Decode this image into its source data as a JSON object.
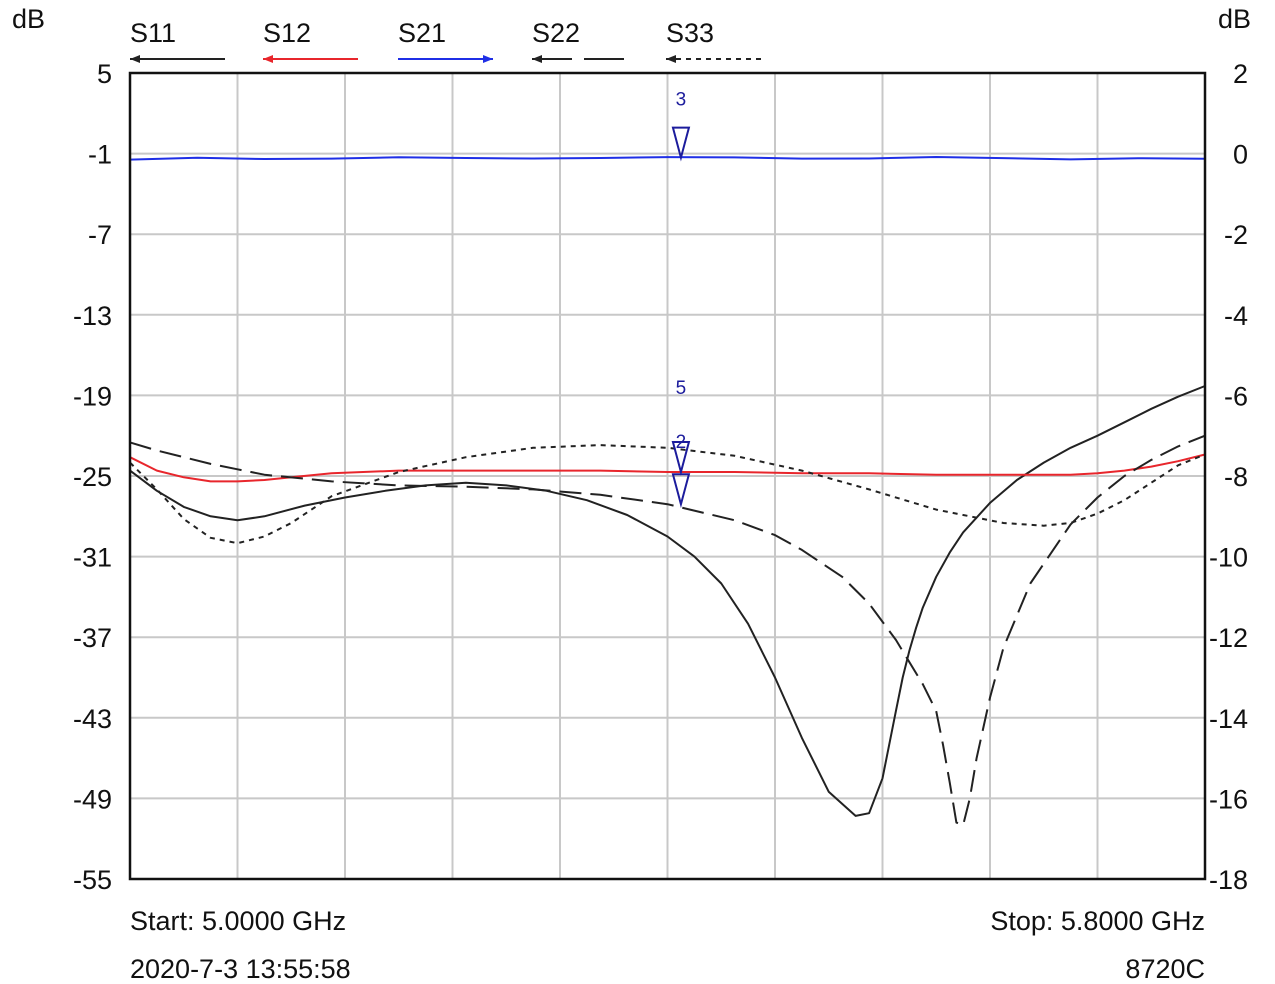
{
  "chart_data": {
    "type": "line",
    "x_range_ghz": [
      5.0,
      5.8
    ],
    "left_axis": {
      "label": "dB",
      "ylim": [
        -55,
        5
      ],
      "ticks": [
        "5",
        "-1",
        "-7",
        "-13",
        "-19",
        "-25",
        "-31",
        "-37",
        "-43",
        "-49",
        "-55"
      ]
    },
    "right_axis": {
      "label": "dB",
      "ylim": [
        -18,
        2
      ],
      "ticks": [
        "2",
        "0",
        "-2",
        "-4",
        "-6",
        "-8",
        "-10",
        "-12",
        "-14",
        "-16",
        "-18"
      ]
    },
    "grid": true,
    "legend_placement": "top",
    "series": [
      {
        "name": "S11",
        "axis": "left",
        "color": "#222222",
        "style": "solid",
        "x": [
          5.0,
          5.02,
          5.04,
          5.06,
          5.08,
          5.1,
          5.13,
          5.16,
          5.19,
          5.22,
          5.25,
          5.28,
          5.31,
          5.34,
          5.37,
          5.4,
          5.42,
          5.44,
          5.46,
          5.48,
          5.5,
          5.52,
          5.54,
          5.55,
          5.56,
          5.565,
          5.57,
          5.575,
          5.58,
          5.585,
          5.59,
          5.6,
          5.61,
          5.62,
          5.64,
          5.66,
          5.68,
          5.7,
          5.72,
          5.74,
          5.76,
          5.78,
          5.8
        ],
        "y": [
          -24.6,
          -26.1,
          -27.3,
          -28.0,
          -28.3,
          -28.0,
          -27.2,
          -26.6,
          -26.1,
          -25.7,
          -25.5,
          -25.7,
          -26.1,
          -26.8,
          -27.9,
          -29.5,
          -31.0,
          -33.0,
          -36.0,
          -40.0,
          -44.5,
          -48.5,
          -50.3,
          -50.1,
          -47.5,
          -45.0,
          -42.5,
          -40.0,
          -38.0,
          -36.3,
          -34.8,
          -32.5,
          -30.7,
          -29.2,
          -27.0,
          -25.3,
          -24.0,
          -22.9,
          -22.0,
          -21.0,
          -20.0,
          -19.1,
          -18.3
        ]
      },
      {
        "name": "S12",
        "axis": "left",
        "color": "#e8262c",
        "style": "solid",
        "x": [
          5.0,
          5.02,
          5.04,
          5.06,
          5.08,
          5.1,
          5.12,
          5.15,
          5.2,
          5.25,
          5.3,
          5.35,
          5.4,
          5.45,
          5.5,
          5.55,
          5.6,
          5.65,
          5.7,
          5.72,
          5.74,
          5.76,
          5.78,
          5.8
        ],
        "y": [
          -23.6,
          -24.6,
          -25.1,
          -25.4,
          -25.4,
          -25.3,
          -25.1,
          -24.8,
          -24.6,
          -24.6,
          -24.6,
          -24.6,
          -24.7,
          -24.7,
          -24.8,
          -24.8,
          -24.9,
          -24.9,
          -24.9,
          -24.8,
          -24.6,
          -24.3,
          -23.9,
          -23.4
        ]
      },
      {
        "name": "S21",
        "axis": "right",
        "color": "#1f2fe6",
        "style": "solid",
        "x": [
          5.0,
          5.05,
          5.1,
          5.15,
          5.2,
          5.25,
          5.3,
          5.35,
          5.4,
          5.45,
          5.5,
          5.55,
          5.6,
          5.65,
          5.7,
          5.75,
          5.8
        ],
        "y": [
          -0.15,
          -0.12,
          -0.13,
          -0.11,
          -0.1,
          -0.12,
          -0.11,
          -0.1,
          -0.1,
          -0.1,
          -0.11,
          -0.12,
          -0.1,
          -0.11,
          -0.13,
          -0.12,
          -0.14
        ]
      },
      {
        "name": "S22",
        "axis": "left",
        "color": "#222222",
        "style": "dashed",
        "x": [
          5.0,
          5.02,
          5.04,
          5.06,
          5.08,
          5.1,
          5.15,
          5.2,
          5.25,
          5.3,
          5.35,
          5.4,
          5.45,
          5.48,
          5.5,
          5.53,
          5.55,
          5.57,
          5.59,
          5.6,
          5.605,
          5.61,
          5.615,
          5.62,
          5.625,
          5.63,
          5.64,
          5.65,
          5.67,
          5.7,
          5.72,
          5.74,
          5.76,
          5.78,
          5.8
        ],
        "y": [
          -22.5,
          -23.1,
          -23.6,
          -24.1,
          -24.5,
          -24.9,
          -25.4,
          -25.7,
          -25.8,
          -26.0,
          -26.4,
          -27.1,
          -28.3,
          -29.4,
          -30.5,
          -32.5,
          -34.5,
          -37.2,
          -40.5,
          -42.5,
          -45.0,
          -47.8,
          -50.8,
          -51.0,
          -49.0,
          -46.0,
          -41.5,
          -37.8,
          -33.0,
          -28.6,
          -26.6,
          -25.0,
          -23.8,
          -22.8,
          -22.0
        ]
      },
      {
        "name": "S33",
        "axis": "left",
        "color": "#222222",
        "style": "dotted",
        "x": [
          5.0,
          5.02,
          5.04,
          5.06,
          5.08,
          5.1,
          5.12,
          5.15,
          5.2,
          5.25,
          5.3,
          5.35,
          5.4,
          5.45,
          5.5,
          5.55,
          5.6,
          5.65,
          5.68,
          5.7,
          5.72,
          5.74,
          5.76,
          5.78,
          5.8
        ],
        "y": [
          -24.0,
          -26.0,
          -28.2,
          -29.6,
          -30.0,
          -29.5,
          -28.5,
          -26.5,
          -24.7,
          -23.6,
          -22.9,
          -22.7,
          -22.9,
          -23.5,
          -24.6,
          -26.0,
          -27.5,
          -28.5,
          -28.7,
          -28.5,
          -27.8,
          -26.8,
          -25.5,
          -24.2,
          -23.4
        ]
      }
    ],
    "markers": [
      {
        "label": "3",
        "x": 5.41,
        "series": "S21"
      },
      {
        "label": "5",
        "x": 5.41,
        "series": "S12"
      },
      {
        "label": "2",
        "x": 5.41,
        "series": "S22"
      }
    ],
    "footer": {
      "start": "Start: 5.0000 GHz",
      "stop": "Stop: 5.8000 GHz",
      "timestamp": "2020-7-3 13:55:58",
      "model": "8720C"
    }
  }
}
